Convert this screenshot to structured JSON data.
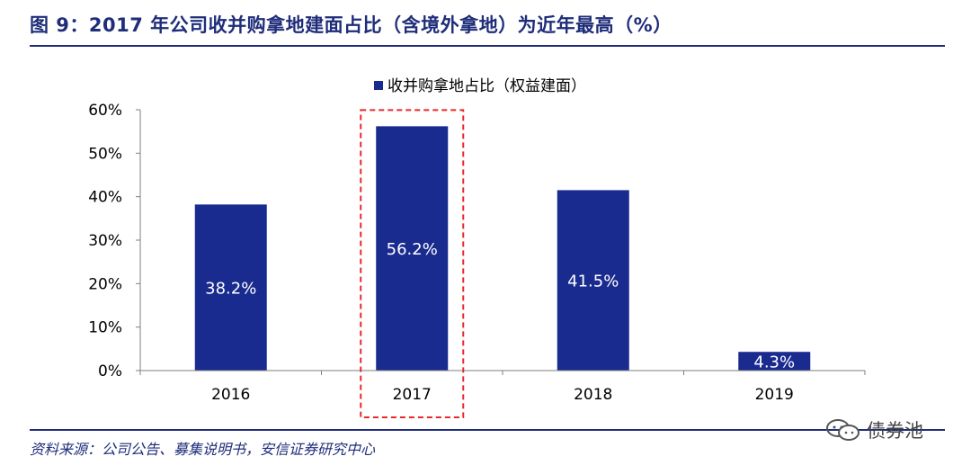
{
  "figure": {
    "title": "图 9：2017 年公司收并购拿地建面占比（含境外拿地）为近年最高（%）",
    "source": "资料来源：公司公告、募集说明书，安信证券研究中心",
    "watermark": "债券池"
  },
  "colors": {
    "bar": "#1a2b8f",
    "title": "#1f2d7a",
    "highlight": "#e8282a",
    "axis": "#7f7f7f"
  },
  "chart_data": {
    "type": "bar",
    "categories": [
      "2016",
      "2017",
      "2018",
      "2019"
    ],
    "series": [
      {
        "name": "收并购拿地占比（权益建面）",
        "values": [
          38.2,
          56.2,
          41.5,
          4.3
        ]
      }
    ],
    "data_labels": [
      "38.2%",
      "56.2%",
      "41.5%",
      "4.3%"
    ],
    "yticks": [
      "0%",
      "10%",
      "20%",
      "30%",
      "40%",
      "50%",
      "60%"
    ],
    "ylim": [
      0,
      60
    ],
    "grid": false,
    "legend": "top-center",
    "highlighted_category": "2017"
  }
}
